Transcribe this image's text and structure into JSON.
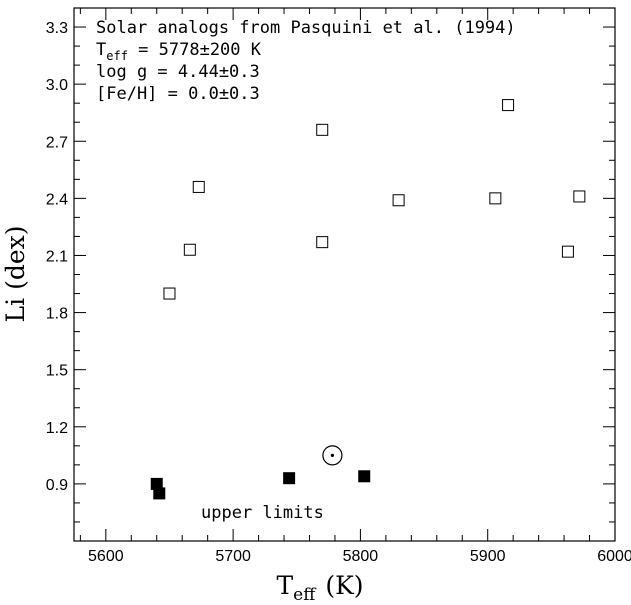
{
  "chart_data": {
    "type": "scatter",
    "title": "",
    "xlabel": "T",
    "xlabel_sub": "eff",
    "xlabel_unit": "(K)",
    "ylabel": "Li (dex)",
    "xlim": [
      5575,
      6000
    ],
    "ylim": [
      0.6,
      3.4
    ],
    "xticks": [
      5600,
      5700,
      5800,
      5900,
      6000
    ],
    "yticks": [
      0.9,
      1.2,
      1.5,
      1.8,
      2.1,
      2.4,
      2.7,
      3.0,
      3.3
    ],
    "ytick_labels": [
      "0.9",
      "1.2",
      "1.5",
      "1.8",
      "2.1",
      "2.4",
      "2.7",
      "3.0",
      "3.3"
    ],
    "grid": false,
    "series": [
      {
        "marker": "open-square",
        "points": [
          {
            "x": 5650,
            "y": 1.9
          },
          {
            "x": 5666,
            "y": 2.13
          },
          {
            "x": 5673,
            "y": 2.46
          },
          {
            "x": 5770,
            "y": 2.76
          },
          {
            "x": 5770,
            "y": 2.17
          },
          {
            "x": 5830,
            "y": 2.39
          },
          {
            "x": 5906,
            "y": 2.4
          },
          {
            "x": 5916,
            "y": 2.89
          },
          {
            "x": 5963,
            "y": 2.12
          },
          {
            "x": 5972,
            "y": 2.41
          }
        ]
      },
      {
        "name": "upper limits",
        "marker": "filled-square",
        "points": [
          {
            "x": 5640,
            "y": 0.9
          },
          {
            "x": 5642,
            "y": 0.85
          },
          {
            "x": 5744,
            "y": 0.93
          },
          {
            "x": 5803,
            "y": 0.94
          }
        ]
      },
      {
        "marker": "sun",
        "points": [
          {
            "x": 5778,
            "y": 1.05
          }
        ]
      }
    ],
    "annotations": {
      "line1": "Solar analogs from Pasquini et al. (1994)",
      "line2_main": "T",
      "line2_sub": "eff",
      "line2_rest": " = 5778±200 K",
      "line3": "log g = 4.44±0.3",
      "line4": "[Fe/H] = 0.0±0.3",
      "upper_limits_label": "upper limits"
    }
  }
}
